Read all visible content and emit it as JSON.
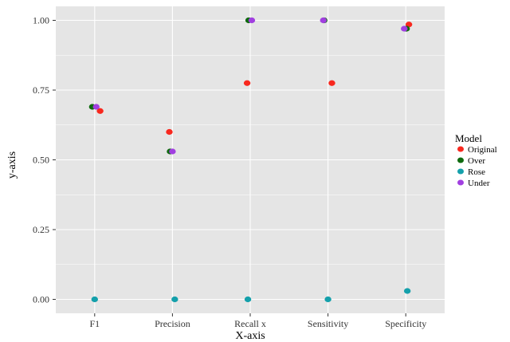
{
  "chart_data": {
    "type": "scatter",
    "title": "",
    "xlabel": "X-axis",
    "ylabel": "y-axis",
    "categories": [
      "F1",
      "Precision",
      "Recall x",
      "Sensitivity",
      "Specificity"
    ],
    "ylim": [
      -0.05,
      1.05
    ],
    "yticks": [
      0.0,
      0.25,
      0.5,
      0.75,
      1.0
    ],
    "ytick_labels": [
      "0.00",
      "0.25",
      "0.50",
      "0.75",
      "1.00"
    ],
    "grid": true,
    "background": "#e5e5e5",
    "grid_color": "#ffffff",
    "legend": {
      "title": "Model",
      "placement": "right"
    },
    "series": [
      {
        "name": "Original",
        "color": "#f8281e",
        "points": [
          {
            "x": "F1",
            "y": 0.675,
            "jitter": 0.07
          },
          {
            "x": "Precision",
            "y": 0.6,
            "jitter": -0.04
          },
          {
            "x": "Recall x",
            "y": 0.775,
            "jitter": -0.04
          },
          {
            "x": "Sensitivity",
            "y": 0.775,
            "jitter": 0.05
          },
          {
            "x": "Specificity",
            "y": 0.985,
            "jitter": 0.04
          }
        ]
      },
      {
        "name": "Over",
        "color": "#0e6a0e",
        "points": [
          {
            "x": "F1",
            "y": 0.69,
            "jitter": -0.03
          },
          {
            "x": "Precision",
            "y": 0.53,
            "jitter": -0.03
          },
          {
            "x": "Recall x",
            "y": 1.0,
            "jitter": -0.02
          },
          {
            "x": "Sensitivity",
            "y": 1.0,
            "jitter": -0.05
          },
          {
            "x": "Specificity",
            "y": 0.97,
            "jitter": 0.01
          }
        ]
      },
      {
        "name": "Rose",
        "color": "#14a0ab",
        "points": [
          {
            "x": "F1",
            "y": 0.0,
            "jitter": 0.0
          },
          {
            "x": "Precision",
            "y": 0.0,
            "jitter": 0.03
          },
          {
            "x": "Recall x",
            "y": 0.0,
            "jitter": -0.03
          },
          {
            "x": "Sensitivity",
            "y": 0.0,
            "jitter": 0.0
          },
          {
            "x": "Specificity",
            "y": 0.03,
            "jitter": 0.02
          }
        ]
      },
      {
        "name": "Under",
        "color": "#a13fe0",
        "points": [
          {
            "x": "F1",
            "y": 0.69,
            "jitter": 0.02
          },
          {
            "x": "Precision",
            "y": 0.53,
            "jitter": 0.0
          },
          {
            "x": "Recall x",
            "y": 1.0,
            "jitter": 0.02
          },
          {
            "x": "Sensitivity",
            "y": 1.0,
            "jitter": -0.06
          },
          {
            "x": "Specificity",
            "y": 0.97,
            "jitter": -0.02
          }
        ]
      }
    ]
  }
}
